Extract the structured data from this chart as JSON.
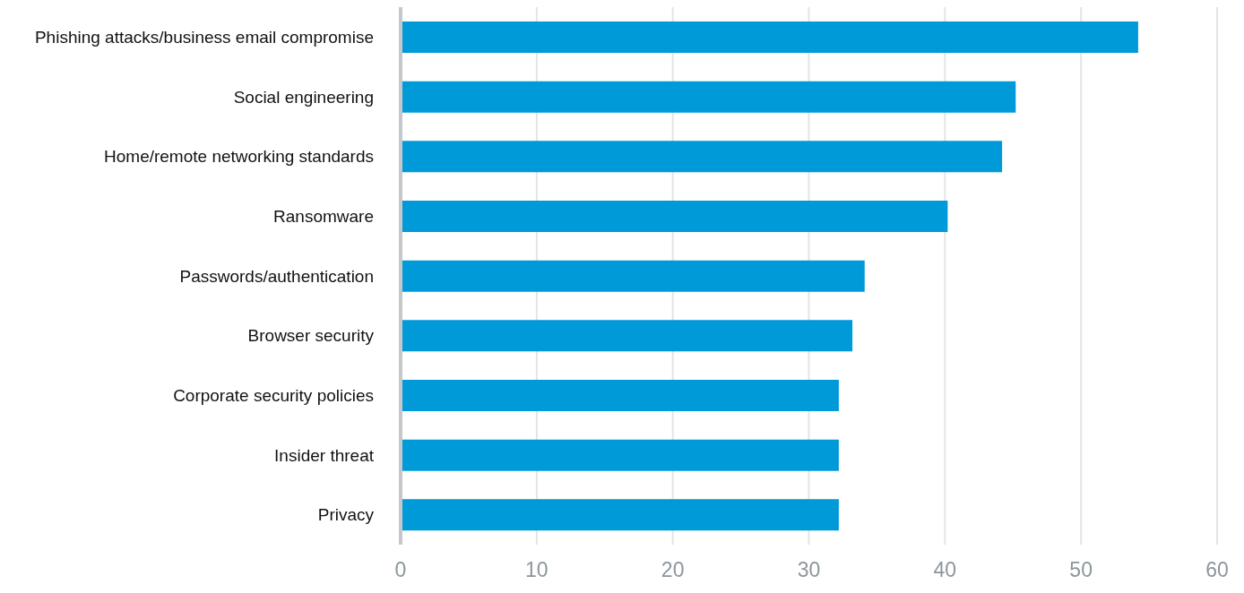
{
  "chart_data": {
    "type": "bar",
    "orientation": "horizontal",
    "categories": [
      "Phishing attacks/business email compromise",
      "Social engineering",
      "Home/remote networking standards",
      "Ransomware",
      "Passwords/authentication",
      "Browser security",
      "Corporate security policies",
      "Insider threat",
      "Privacy"
    ],
    "values": [
      54.2,
      45.2,
      44.2,
      40.2,
      34.1,
      33.2,
      32.2,
      32.2,
      32.2
    ],
    "color": "#009ad9",
    "xlim": [
      0,
      60
    ],
    "xticks": [
      0,
      10,
      20,
      30,
      40,
      50,
      60
    ],
    "grid": "x"
  }
}
